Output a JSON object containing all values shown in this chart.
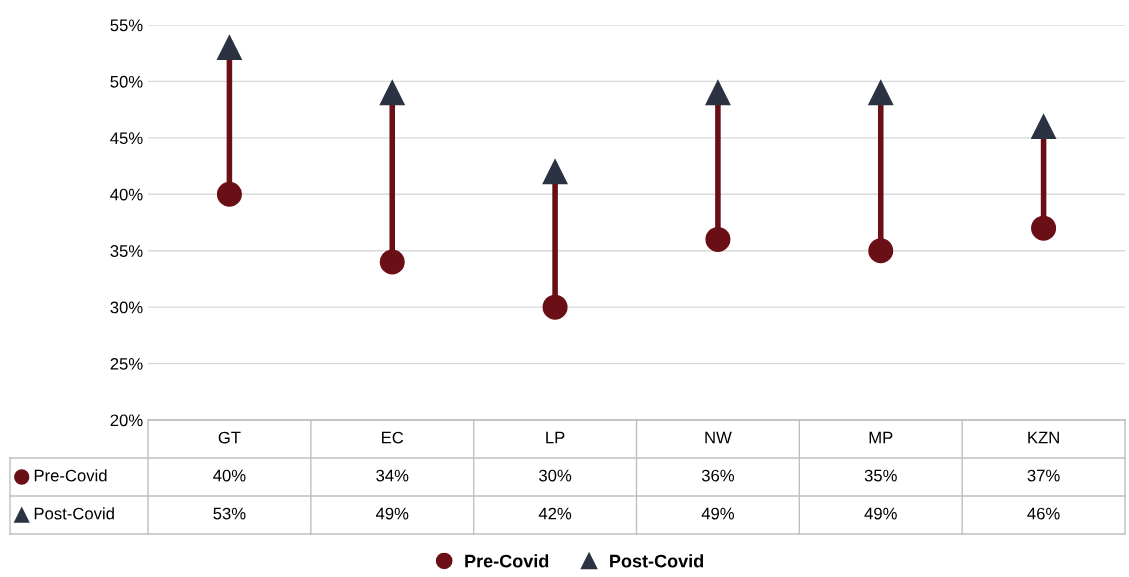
{
  "chart_data": {
    "type": "scatter",
    "categories": [
      "GT",
      "EC",
      "LP",
      "NW",
      "MP",
      "KZN"
    ],
    "series": [
      {
        "name": "Pre-Covid",
        "color": "#6b0f16",
        "marker": "circle",
        "values": [
          40,
          34,
          30,
          36,
          35,
          37
        ],
        "value_labels": [
          "40%",
          "34%",
          "30%",
          "36%",
          "35%",
          "37%"
        ]
      },
      {
        "name": "Post-Covid",
        "color": "#2b3342",
        "marker": "triangle",
        "values": [
          53,
          49,
          42,
          49,
          49,
          46
        ],
        "value_labels": [
          "53%",
          "49%",
          "42%",
          "49%",
          "49%",
          "46%"
        ]
      }
    ],
    "ylim": [
      20,
      55
    ],
    "yticks": [
      {
        "value": 20,
        "label": "20%"
      },
      {
        "value": 25,
        "label": "25%"
      },
      {
        "value": 30,
        "label": "30%"
      },
      {
        "value": 35,
        "label": "35%"
      },
      {
        "value": 40,
        "label": "40%"
      },
      {
        "value": 45,
        "label": "45%"
      },
      {
        "value": 50,
        "label": "50%"
      },
      {
        "value": 55,
        "label": "55%"
      }
    ],
    "grid": "y",
    "legend": "bottom"
  }
}
